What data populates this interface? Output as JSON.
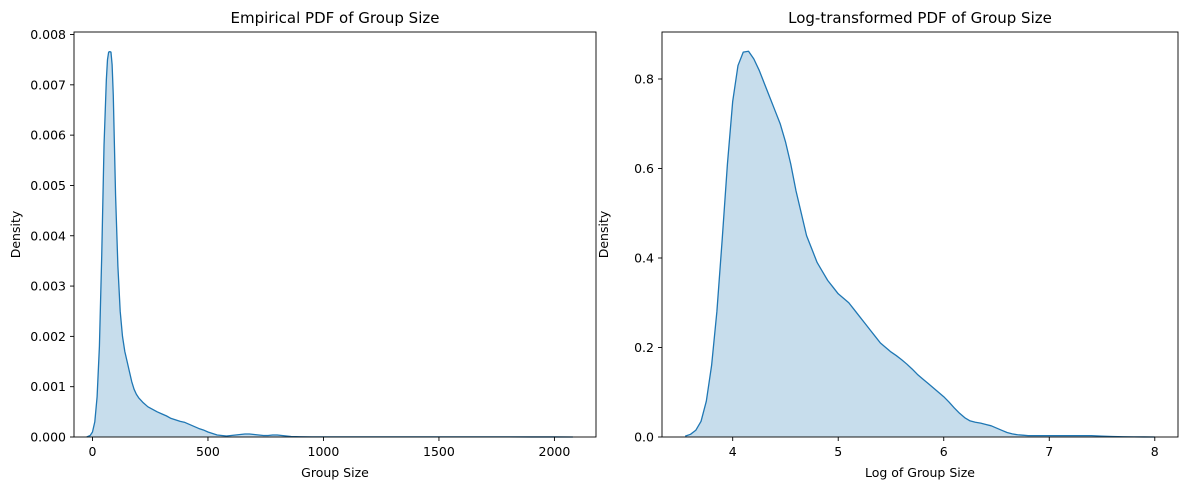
{
  "chart_data": [
    {
      "type": "area",
      "title": "Empirical PDF of Group Size",
      "xlabel": "Group Size",
      "ylabel": "Density",
      "xlim": [
        -80,
        2180
      ],
      "ylim": [
        0,
        0.00805
      ],
      "xticks": [
        0,
        500,
        1000,
        1500,
        2000
      ],
      "xtick_labels": [
        "0",
        "500",
        "1000",
        "1500",
        "2000"
      ],
      "yticks": [
        0,
        0.001,
        0.002,
        0.003,
        0.004,
        0.005,
        0.006,
        0.007,
        0.008
      ],
      "ytick_labels": [
        "0.000",
        "0.001",
        "0.002",
        "0.003",
        "0.004",
        "0.005",
        "0.006",
        "0.007",
        "0.008"
      ],
      "grid": false,
      "line_color": "#1f77b4",
      "fill_color": "#1f77b4",
      "fill_opacity": 0.25,
      "series": [
        {
          "x": [
            -25,
            -10,
            0,
            10,
            20,
            30,
            40,
            50,
            60,
            65,
            70,
            75,
            80,
            85,
            90,
            95,
            100,
            110,
            120,
            130,
            140,
            150,
            160,
            170,
            180,
            190,
            200,
            220,
            240,
            260,
            280,
            300,
            320,
            340,
            360,
            380,
            400,
            420,
            440,
            460,
            480,
            500,
            520,
            540,
            560,
            580,
            600,
            620,
            640,
            660,
            680,
            700,
            720,
            740,
            760,
            780,
            800,
            820,
            840,
            860,
            900,
            950,
            1000,
            1100,
            1200,
            1300,
            1400,
            1500,
            1600,
            1700,
            1800,
            1900,
            2000,
            2080
          ],
          "y": [
            0.0,
            3e-05,
            0.0001,
            0.0003,
            0.0008,
            0.0018,
            0.0036,
            0.0058,
            0.0071,
            0.0075,
            0.00765,
            0.00766,
            0.00765,
            0.0074,
            0.0068,
            0.0058,
            0.0048,
            0.0034,
            0.0025,
            0.002,
            0.0017,
            0.0015,
            0.0013,
            0.0011,
            0.00095,
            0.00085,
            0.00078,
            0.00068,
            0.0006,
            0.00055,
            0.0005,
            0.00046,
            0.00042,
            0.00037,
            0.00034,
            0.00031,
            0.00029,
            0.00025,
            0.00021,
            0.00017,
            0.00014,
            0.0001,
            7e-05,
            4e-05,
            3e-05,
            2e-05,
            3e-05,
            4e-05,
            5e-05,
            6e-05,
            6e-05,
            5e-05,
            4e-05,
            3e-05,
            3e-05,
            4e-05,
            4e-05,
            3e-05,
            2e-05,
            1e-05,
            5e-06,
            3e-06,
            2e-06,
            2e-06,
            2e-06,
            2e-06,
            2e-06,
            2e-06,
            2e-06,
            2e-06,
            2e-06,
            1e-06,
            1e-06,
            0.0
          ]
        }
      ]
    },
    {
      "type": "area",
      "title": "Log-transformed PDF of Group Size",
      "xlabel": "Log of Group Size",
      "ylabel": "Density",
      "xlim": [
        3.33,
        8.22
      ],
      "ylim": [
        0,
        0.905
      ],
      "xticks": [
        4,
        5,
        6,
        7,
        8
      ],
      "xtick_labels": [
        "4",
        "5",
        "6",
        "7",
        "8"
      ],
      "yticks": [
        0,
        0.2,
        0.4,
        0.6,
        0.8
      ],
      "ytick_labels": [
        "0.0",
        "0.2",
        "0.4",
        "0.6",
        "0.8"
      ],
      "grid": false,
      "line_color": "#1f77b4",
      "fill_color": "#1f77b4",
      "fill_opacity": 0.25,
      "series": [
        {
          "x": [
            3.55,
            3.6,
            3.65,
            3.7,
            3.75,
            3.8,
            3.85,
            3.9,
            3.95,
            4.0,
            4.05,
            4.1,
            4.15,
            4.2,
            4.25,
            4.3,
            4.35,
            4.4,
            4.45,
            4.5,
            4.55,
            4.6,
            4.65,
            4.7,
            4.75,
            4.8,
            4.85,
            4.9,
            4.95,
            5.0,
            5.05,
            5.1,
            5.15,
            5.2,
            5.25,
            5.3,
            5.35,
            5.4,
            5.45,
            5.5,
            5.55,
            5.6,
            5.65,
            5.7,
            5.75,
            5.8,
            5.85,
            5.9,
            5.95,
            6.0,
            6.05,
            6.1,
            6.15,
            6.2,
            6.25,
            6.3,
            6.35,
            6.4,
            6.45,
            6.5,
            6.55,
            6.6,
            6.65,
            6.7,
            6.75,
            6.8,
            6.85,
            6.9,
            6.95,
            7.0,
            7.1,
            7.2,
            7.3,
            7.4,
            7.5,
            7.6,
            7.7,
            7.8,
            7.9,
            8.0
          ],
          "y": [
            0.002,
            0.006,
            0.015,
            0.035,
            0.08,
            0.16,
            0.28,
            0.44,
            0.61,
            0.75,
            0.83,
            0.86,
            0.862,
            0.845,
            0.82,
            0.79,
            0.76,
            0.73,
            0.7,
            0.66,
            0.61,
            0.55,
            0.5,
            0.45,
            0.42,
            0.39,
            0.37,
            0.35,
            0.335,
            0.32,
            0.31,
            0.3,
            0.285,
            0.27,
            0.255,
            0.24,
            0.225,
            0.21,
            0.2,
            0.19,
            0.182,
            0.173,
            0.163,
            0.152,
            0.14,
            0.13,
            0.12,
            0.11,
            0.1,
            0.09,
            0.078,
            0.065,
            0.053,
            0.043,
            0.036,
            0.033,
            0.031,
            0.028,
            0.025,
            0.02,
            0.015,
            0.01,
            0.007,
            0.005,
            0.004,
            0.003,
            0.003,
            0.003,
            0.003,
            0.003,
            0.003,
            0.003,
            0.003,
            0.003,
            0.002,
            0.001,
            0.0005,
            0.0003,
            0.0001,
            0.0
          ]
        }
      ]
    }
  ]
}
